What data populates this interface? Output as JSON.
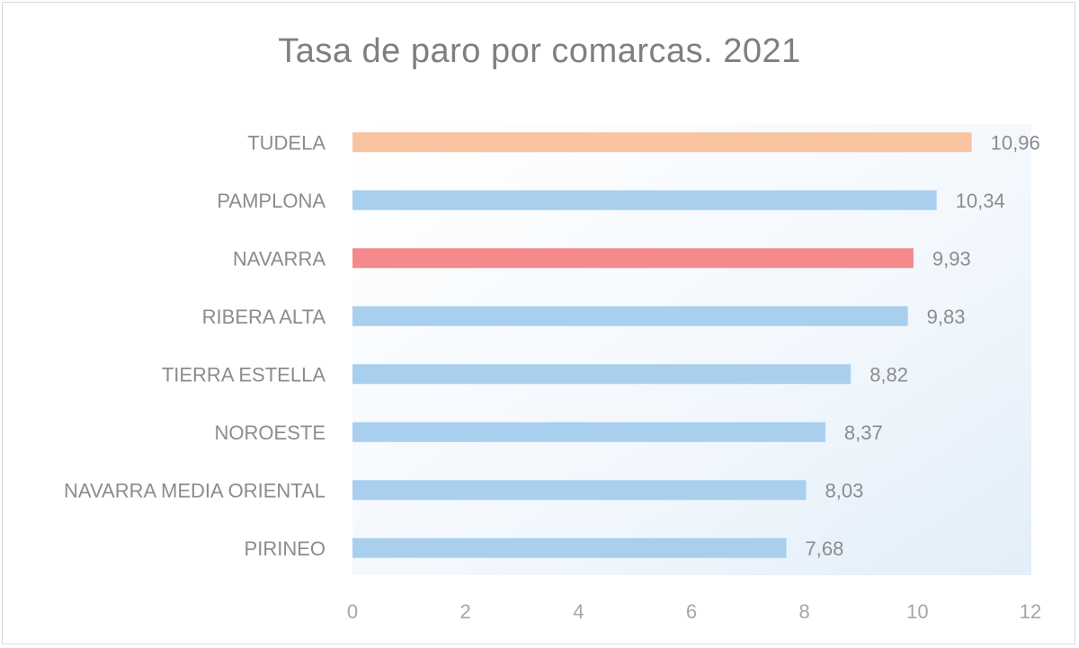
{
  "chart_data": {
    "type": "bar",
    "orientation": "horizontal",
    "title": "Tasa de paro por comarcas. 2021",
    "categories": [
      "TUDELA",
      "PAMPLONA",
      "NAVARRA",
      "RIBERA ALTA",
      "TIERRA ESTELLA",
      "NOROESTE",
      "NAVARRA MEDIA ORIENTAL",
      "PIRINEO"
    ],
    "values": [
      10.96,
      10.34,
      9.93,
      9.83,
      8.82,
      8.37,
      8.03,
      7.68
    ],
    "value_labels": [
      "10,96",
      "10,34",
      "9,93",
      "9,83",
      "8,82",
      "8,37",
      "8,03",
      "7,68"
    ],
    "bar_colors": [
      "#f8c4a0",
      "#a9cfee",
      "#f6898c",
      "#a9cfee",
      "#a9cfee",
      "#a9cfee",
      "#a9cfee",
      "#a9cfee"
    ],
    "xlim": [
      0,
      12
    ],
    "xticks": [
      0,
      2,
      4,
      6,
      8,
      10,
      12
    ],
    "xtick_labels": [
      "0",
      "2",
      "4",
      "6",
      "8",
      "10",
      "12"
    ],
    "grid": false,
    "legend": "none"
  }
}
